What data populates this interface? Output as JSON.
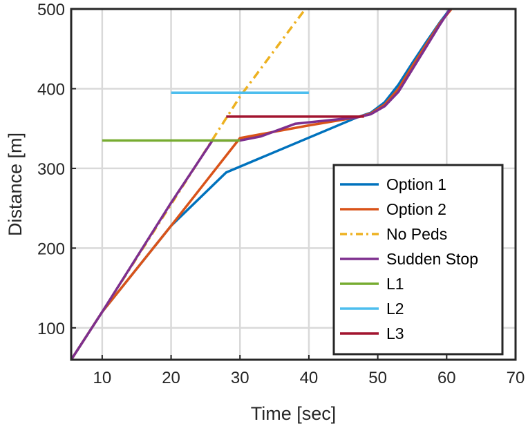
{
  "chart_data": {
    "type": "line",
    "title": "",
    "xlabel": "Time [sec]",
    "ylabel": "Distance [m]",
    "xlim": [
      5.5,
      70
    ],
    "ylim": [
      60,
      500
    ],
    "xticks": [
      10,
      20,
      30,
      40,
      50,
      60,
      70
    ],
    "yticks": [
      100,
      200,
      300,
      400,
      500
    ],
    "grid": true,
    "legend_position": "bottom-right",
    "series": [
      {
        "name": "Option 1",
        "color": "#0072BD",
        "style": "solid",
        "points": [
          [
            5.5,
            60
          ],
          [
            10,
            120
          ],
          [
            20,
            228
          ],
          [
            28,
            295
          ],
          [
            47,
            364
          ],
          [
            49,
            370
          ],
          [
            51,
            383
          ],
          [
            53,
            405
          ],
          [
            55,
            432
          ],
          [
            57,
            458
          ],
          [
            59,
            483
          ],
          [
            60.5,
            500
          ]
        ]
      },
      {
        "name": "Option 2",
        "color": "#D95319",
        "style": "solid",
        "points": [
          [
            5.5,
            60
          ],
          [
            10,
            120
          ],
          [
            20,
            228
          ],
          [
            30,
            338
          ],
          [
            40,
            354
          ],
          [
            47,
            364
          ],
          [
            49,
            369
          ],
          [
            51,
            380
          ],
          [
            53,
            400
          ],
          [
            55,
            428
          ],
          [
            57,
            455
          ],
          [
            59,
            482
          ],
          [
            60.7,
            500
          ]
        ]
      },
      {
        "name": "No Peds",
        "color": "#EDB120",
        "style": "dashdot",
        "points": [
          [
            5.5,
            60
          ],
          [
            10,
            120
          ],
          [
            20,
            255
          ],
          [
            30,
            390
          ],
          [
            38,
            483
          ],
          [
            39.5,
            500
          ]
        ]
      },
      {
        "name": "Sudden Stop",
        "color": "#7E2F8E",
        "style": "solid",
        "points": [
          [
            5.5,
            60
          ],
          [
            10,
            120
          ],
          [
            20,
            257
          ],
          [
            26,
            335
          ],
          [
            30,
            335
          ],
          [
            33,
            340
          ],
          [
            38,
            356
          ],
          [
            47,
            364
          ],
          [
            49,
            368
          ],
          [
            51,
            378
          ],
          [
            53,
            396
          ],
          [
            55,
            424
          ],
          [
            57,
            452
          ],
          [
            59,
            480
          ],
          [
            60.5,
            500
          ]
        ]
      },
      {
        "name": "L1",
        "color": "#77AC30",
        "style": "solid",
        "points": [
          [
            10,
            335
          ],
          [
            30,
            335
          ]
        ]
      },
      {
        "name": "L2",
        "color": "#4DBEEE",
        "style": "solid",
        "points": [
          [
            20,
            395
          ],
          [
            40,
            395
          ]
        ]
      },
      {
        "name": "L3",
        "color": "#A2142F",
        "style": "solid",
        "points": [
          [
            28,
            365
          ],
          [
            48,
            365
          ]
        ]
      }
    ]
  }
}
